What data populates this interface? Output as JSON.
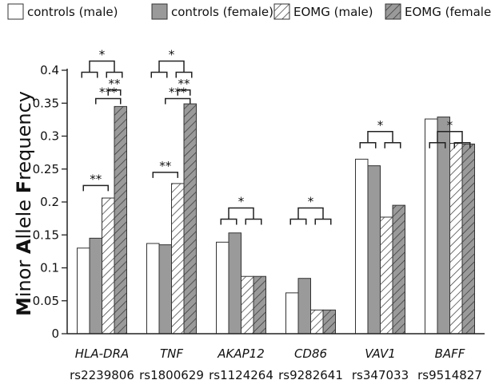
{
  "chart_data": {
    "type": "bar",
    "ylabel_parts": [
      {
        "text": "M",
        "bold": true
      },
      {
        "text": "inor ",
        "bold": false
      },
      {
        "text": "A",
        "bold": true
      },
      {
        "text": "llele ",
        "bold": false
      },
      {
        "text": "F",
        "bold": true
      },
      {
        "text": "requency",
        "bold": false
      }
    ],
    "ylim": [
      0,
      0.4
    ],
    "yticks": [
      "0",
      "0.05",
      "0.1",
      "0.15",
      "0.2",
      "0.25",
      "0.3",
      "0.35",
      "0.4"
    ],
    "categories": [
      {
        "gene": "HLA-DRA",
        "snp": "rs2239806"
      },
      {
        "gene": "TNF",
        "snp": "rs1800629"
      },
      {
        "gene": "AKAP12",
        "snp": "rs1124264"
      },
      {
        "gene": "CD86",
        "snp": "rs9282641"
      },
      {
        "gene": "VAV1",
        "snp": "rs347033"
      },
      {
        "gene": "BAFF",
        "snp": "rs9514827"
      }
    ],
    "series": [
      {
        "name": "controls (male)",
        "fill": "#ffffff",
        "hatch": false,
        "values": [
          0.13,
          0.137,
          0.139,
          0.062,
          0.265,
          0.326
        ]
      },
      {
        "name": "controls (female)",
        "fill": "#9a9a9a",
        "hatch": false,
        "values": [
          0.145,
          0.135,
          0.153,
          0.084,
          0.255,
          0.329
        ]
      },
      {
        "name": "EOMG (male)",
        "fill": "#ffffff",
        "hatch": true,
        "values": [
          0.206,
          0.228,
          0.087,
          0.036,
          0.177,
          0.289
        ]
      },
      {
        "name": "EOMG (female)",
        "fill": "#9a9a9a",
        "hatch": true,
        "values": [
          0.345,
          0.349,
          0.087,
          0.036,
          0.195,
          0.288
        ]
      }
    ],
    "annotations": [
      {
        "type": "group-vs-group",
        "category": 0,
        "label": "*",
        "level": 0.397
      },
      {
        "type": "pair",
        "category": 0,
        "from": 2,
        "to": 3,
        "label": "**",
        "level": 0.37
      },
      {
        "type": "pair",
        "category": 0,
        "from": 1,
        "to": 3,
        "label": "***",
        "level": 0.357
      },
      {
        "type": "pair",
        "category": 0,
        "from": 0,
        "to": 2,
        "label": "**",
        "level": 0.225
      },
      {
        "type": "group-vs-group",
        "category": 1,
        "label": "*",
        "level": 0.397
      },
      {
        "type": "pair",
        "category": 1,
        "from": 2,
        "to": 3,
        "label": "**",
        "level": 0.37
      },
      {
        "type": "pair",
        "category": 1,
        "from": 1,
        "to": 3,
        "label": "***",
        "level": 0.357
      },
      {
        "type": "pair",
        "category": 1,
        "from": 0,
        "to": 2,
        "label": "**",
        "level": 0.245
      },
      {
        "type": "group-vs-group",
        "category": 2,
        "label": "*",
        "level": 0.174
      },
      {
        "type": "group-vs-group",
        "category": 3,
        "label": "*",
        "level": 0.174
      },
      {
        "type": "group-vs-group",
        "category": 4,
        "label": "*",
        "level": 0.29
      },
      {
        "type": "group-vs-group",
        "category": 5,
        "label": "*",
        "level": 0.29
      }
    ],
    "grid": false,
    "legend_placement": "top"
  }
}
